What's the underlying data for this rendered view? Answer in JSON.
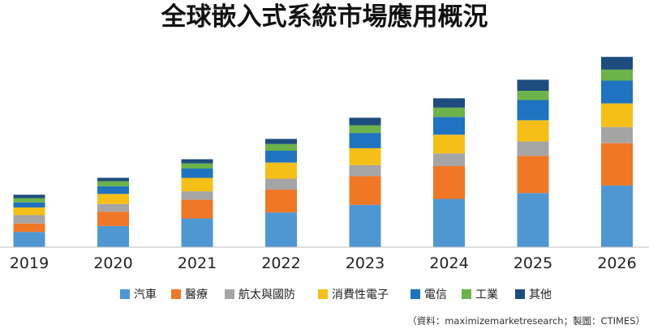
{
  "chart_data": {
    "type": "bar",
    "stacked": true,
    "title": "全球嵌入式系統市場應用概況",
    "xlabel": "",
    "ylabel": "",
    "categories": [
      "2019",
      "2020",
      "2021",
      "2022",
      "2023",
      "2024",
      "2025",
      "2026"
    ],
    "series": [
      {
        "name": "汽車",
        "color": "#4E97D3",
        "values": [
          18,
          25,
          34,
          41,
          50,
          57,
          64,
          73
        ]
      },
      {
        "name": "醫療",
        "color": "#F07726",
        "values": [
          10,
          17,
          22,
          27,
          34,
          39,
          44,
          50
        ]
      },
      {
        "name": "航太與國防",
        "color": "#A5A5A5",
        "values": [
          10,
          9,
          10,
          13,
          13,
          15,
          17,
          19
        ]
      },
      {
        "name": "消費性電子",
        "color": "#F6BF18",
        "values": [
          9,
          12,
          16,
          19,
          20,
          22,
          25,
          28
        ]
      },
      {
        "name": "電信",
        "color": "#1F73C0",
        "values": [
          6,
          9,
          11,
          14,
          18,
          21,
          24,
          27
        ]
      },
      {
        "name": "工業",
        "color": "#6CB34A",
        "values": [
          5,
          6,
          6,
          8,
          9,
          11,
          11,
          13
        ]
      },
      {
        "name": "其他",
        "color": "#1D4D7E",
        "values": [
          4,
          4,
          5,
          6,
          9,
          11,
          13,
          15
        ]
      }
    ],
    "ylim": [
      0,
      230
    ],
    "grid": false,
    "legend_position": "bottom"
  },
  "source_note": "（資料：maximizemarketresearch；製圖：CTIMES）"
}
